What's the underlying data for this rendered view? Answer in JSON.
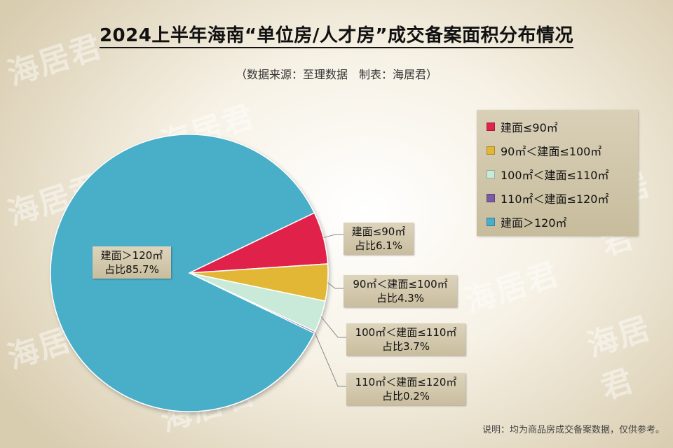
{
  "header": {
    "title": "2024上半年海南“单位房/人才房”成交备案面积分布情况",
    "subtitle": "（数据来源：至理数据　制表：海居君）"
  },
  "watermark": {
    "text": "海居君"
  },
  "footnote": "说明：均为商品房成交备案数据，仅供参考。",
  "colors": {
    "le90": "#e0234c",
    "r90_100": "#e2b736",
    "r100_110": "#c9ead8",
    "r110_120": "#7b5aa6",
    "gt120": "#49aec8"
  },
  "chart_data": {
    "type": "pie",
    "title": "2024上半年海南“单位房/人才房”成交备案面积分布情况",
    "slices": [
      {
        "label": "建面≤90㎡",
        "value": 6.1,
        "value_label": "占比6.1%",
        "color": "#e0234c"
      },
      {
        "label": "90㎡＜建面≤100㎡",
        "value": 4.3,
        "value_label": "占比4.3%",
        "color": "#e2b736"
      },
      {
        "label": "100㎡＜建面≤110㎡",
        "value": 3.7,
        "value_label": "占比3.7%",
        "color": "#c9ead8"
      },
      {
        "label": "110㎡＜建面≤120㎡",
        "value": 0.2,
        "value_label": "占比0.2%",
        "color": "#7b5aa6"
      },
      {
        "label": "建面＞120㎡",
        "value": 85.7,
        "value_label": "占比85.7%",
        "color": "#49aec8"
      }
    ],
    "legend_position": "right"
  }
}
